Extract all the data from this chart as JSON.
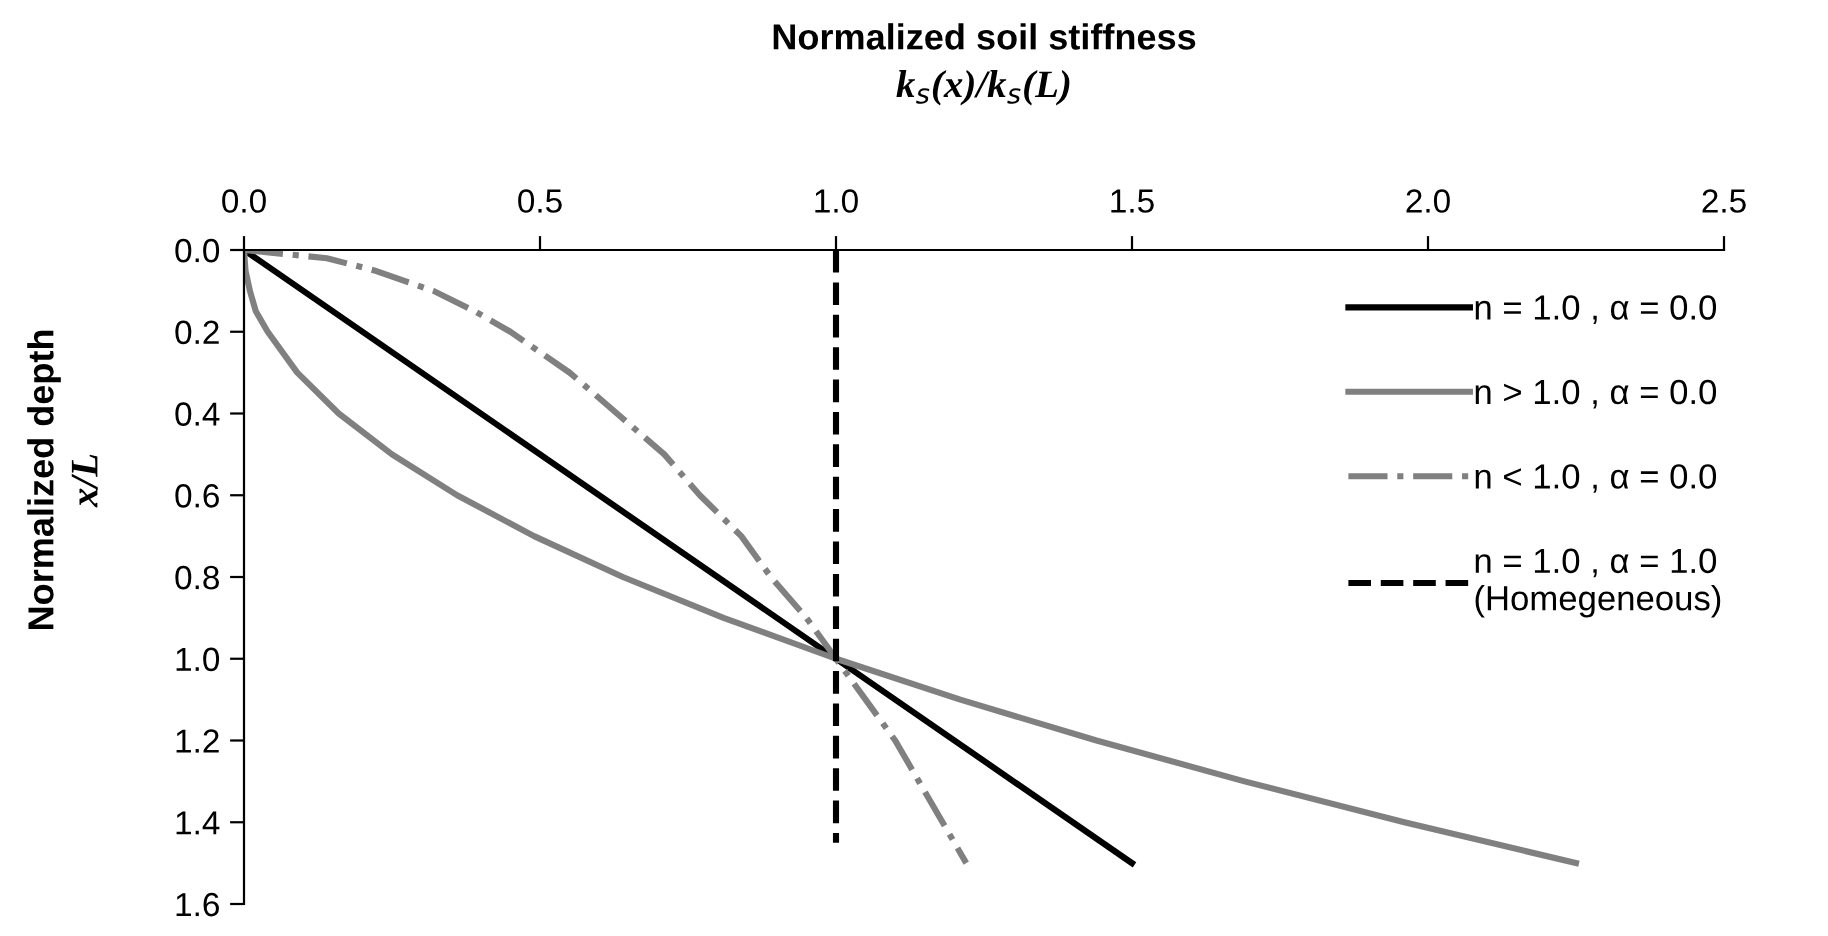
{
  "chart_data": {
    "type": "line",
    "xlabel": "Normalized soil stiffness\nk$_{s}$(x)/k$_{s}$(L)",
    "ylabel": "Normalized depth\nx/L",
    "series": [
      {
        "name": "n = 1.0 , α = 0.0",
        "color": "#000000",
        "line_style": "solid",
        "x": [
          0,
          1.5
        ],
        "values": [
          0,
          1.5
        ]
      },
      {
        "name": "n > 1.0 , α = 0.0",
        "color": "#808080",
        "line_style": "solid",
        "x": [
          0,
          0.0025,
          0.01,
          0.02,
          0.04,
          0.09,
          0.16,
          0.25,
          0.36,
          0.49,
          0.64,
          0.81,
          1.0,
          1.21,
          1.44,
          1.69,
          1.96,
          2.25
        ],
        "values": [
          0,
          0.05,
          0.1,
          0.15,
          0.2,
          0.3,
          0.4,
          0.5,
          0.6,
          0.7,
          0.8,
          0.9,
          1.0,
          1.1,
          1.2,
          1.3,
          1.4,
          1.5
        ]
      },
      {
        "name": "n < 1.0 , α = 0.0",
        "color": "#808080",
        "line_style": "dashdot",
        "x": [
          0,
          0.14,
          0.22,
          0.32,
          0.39,
          0.45,
          0.55,
          0.63,
          0.71,
          0.77,
          0.84,
          0.89,
          0.95,
          1.0,
          1.05,
          1.1,
          1.14,
          1.18,
          1.22
        ],
        "values": [
          0,
          0.02,
          0.05,
          0.1,
          0.15,
          0.2,
          0.3,
          0.4,
          0.5,
          0.6,
          0.7,
          0.8,
          0.9,
          1.0,
          1.1,
          1.2,
          1.3,
          1.4,
          1.5
        ]
      },
      {
        "name": "n = 1.0 , α = 1.0\n(Homegeneous)",
        "color": "#000000",
        "line_style": "dashed",
        "x": [
          1.0,
          1.0,
          1.0
        ],
        "values": [
          0,
          1.0,
          1.45
        ]
      }
    ],
    "xlim": [
      0,
      2.5
    ],
    "xticks": [
      {
        "value": 0,
        "label": "0.0"
      },
      {
        "value": 0.5,
        "label": "0.5"
      },
      {
        "value": 1.0,
        "label": "1.0"
      },
      {
        "value": 1.5,
        "label": "1.5"
      },
      {
        "value": 2.0,
        "label": "2.0"
      },
      {
        "value": 2.5,
        "label": "2.5"
      }
    ],
    "ylim": [
      1.6,
      0
    ],
    "yticks": [
      {
        "value": 0,
        "label": "0.0"
      },
      {
        "value": 0.2,
        "label": "0.2"
      },
      {
        "value": 0.4,
        "label": "0.4"
      },
      {
        "value": 0.6,
        "label": "0.6"
      },
      {
        "value": 0.8,
        "label": "0.8"
      },
      {
        "value": 1.0,
        "label": "1.0"
      },
      {
        "value": 1.2,
        "label": "1.2"
      },
      {
        "value": 1.4,
        "label": "1.4"
      },
      {
        "value": 1.6,
        "label": "1.6"
      }
    ],
    "grid": false,
    "legend": "right"
  }
}
